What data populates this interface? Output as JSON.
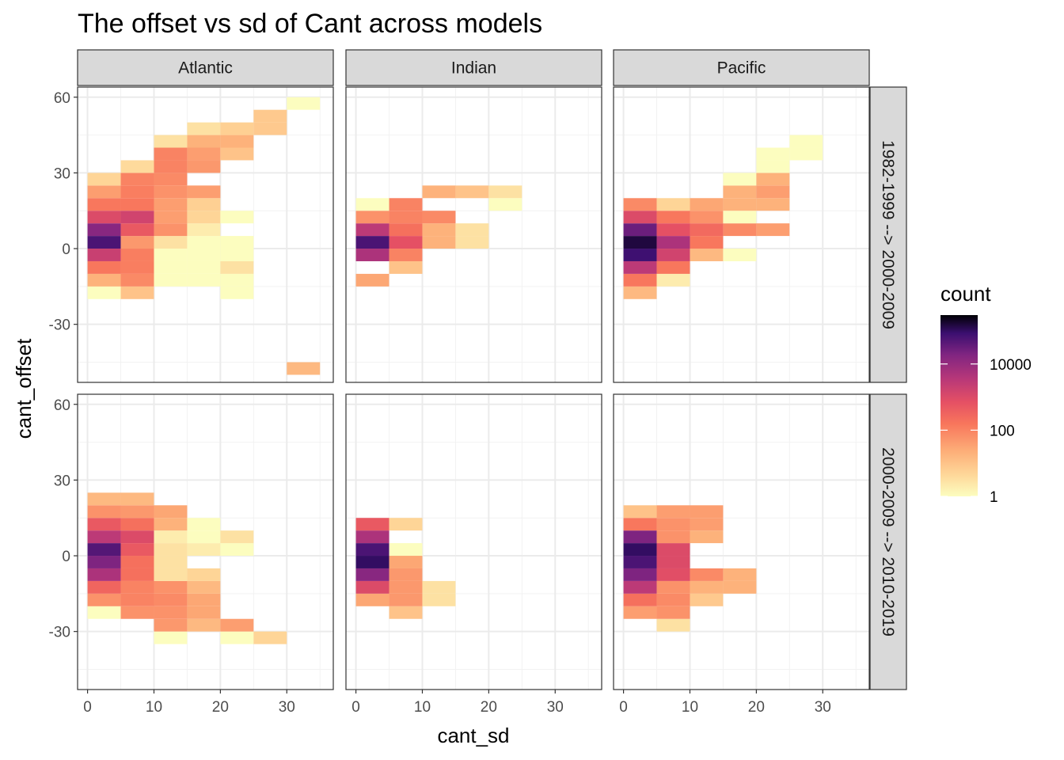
{
  "chart_data": {
    "type": "heatmap",
    "title": "The offset vs sd of Cant across models",
    "xlabel": "cant_sd",
    "ylabel": "cant_offset",
    "xlim": [
      -1.5,
      37
    ],
    "ylim": [
      -53,
      64
    ],
    "x_ticks": [
      0,
      10,
      20,
      30
    ],
    "y_ticks": [
      -30,
      0,
      30,
      60
    ],
    "bin_width_x": 5,
    "bin_height_y": 5,
    "columns": [
      "Atlantic",
      "Indian",
      "Pacific"
    ],
    "rows": [
      "1982-1999 --> 2000-2009",
      "2000-2009 --> 2010-2019"
    ],
    "legend": {
      "title": "count",
      "scale": "log10",
      "range": [
        1,
        300000
      ],
      "labels": [
        "10000",
        "100",
        "1"
      ],
      "label_values": [
        10000,
        100,
        1
      ]
    },
    "panels": [
      {
        "col": "Atlantic",
        "row": "1982-1999 --> 2000-2009",
        "cells": [
          [
            0,
            -20,
            1
          ],
          [
            0,
            -15,
            20
          ],
          [
            0,
            -10,
            150
          ],
          [
            0,
            -5,
            2000
          ],
          [
            0,
            0,
            60000
          ],
          [
            0,
            5,
            15000
          ],
          [
            0,
            10,
            1000
          ],
          [
            0,
            15,
            150
          ],
          [
            0,
            20,
            40
          ],
          [
            0,
            25,
            5
          ],
          [
            5,
            -20,
            10
          ],
          [
            5,
            -15,
            80
          ],
          [
            5,
            -10,
            120
          ],
          [
            5,
            -5,
            120
          ],
          [
            5,
            0,
            50
          ],
          [
            5,
            5,
            500
          ],
          [
            5,
            10,
            1500
          ],
          [
            5,
            15,
            150
          ],
          [
            5,
            20,
            120
          ],
          [
            5,
            25,
            100
          ],
          [
            5,
            30,
            4
          ],
          [
            10,
            -15,
            1
          ],
          [
            10,
            -10,
            1
          ],
          [
            10,
            -5,
            1
          ],
          [
            10,
            0,
            3
          ],
          [
            10,
            5,
            60
          ],
          [
            10,
            10,
            40
          ],
          [
            10,
            15,
            40
          ],
          [
            10,
            20,
            60
          ],
          [
            10,
            25,
            80
          ],
          [
            10,
            30,
            100
          ],
          [
            10,
            35,
            100
          ],
          [
            10,
            40,
            3
          ],
          [
            15,
            -15,
            1
          ],
          [
            15,
            -10,
            1
          ],
          [
            15,
            -5,
            1
          ],
          [
            15,
            0,
            1
          ],
          [
            15,
            5,
            2
          ],
          [
            15,
            10,
            5
          ],
          [
            15,
            15,
            6
          ],
          [
            15,
            20,
            40
          ],
          [
            15,
            30,
            50
          ],
          [
            15,
            35,
            40
          ],
          [
            15,
            40,
            20
          ],
          [
            15,
            45,
            3
          ],
          [
            20,
            -20,
            1
          ],
          [
            20,
            -15,
            1
          ],
          [
            20,
            -10,
            3
          ],
          [
            20,
            -5,
            1
          ],
          [
            20,
            0,
            1
          ],
          [
            20,
            10,
            1
          ],
          [
            20,
            35,
            10
          ],
          [
            20,
            40,
            20
          ],
          [
            20,
            45,
            6
          ],
          [
            25,
            45,
            8
          ],
          [
            25,
            50,
            8
          ],
          [
            30,
            55,
            1
          ],
          [
            30,
            -50,
            15
          ]
        ]
      },
      {
        "col": "Indian",
        "row": "1982-1999 --> 2000-2009",
        "cells": [
          [
            0,
            -15,
            30
          ],
          [
            0,
            -5,
            5000
          ],
          [
            0,
            0,
            60000
          ],
          [
            0,
            5,
            3000
          ],
          [
            0,
            10,
            60
          ],
          [
            0,
            15,
            1
          ],
          [
            5,
            -10,
            10
          ],
          [
            5,
            -5,
            100
          ],
          [
            5,
            0,
            700
          ],
          [
            5,
            5,
            200
          ],
          [
            5,
            10,
            100
          ],
          [
            5,
            15,
            100
          ],
          [
            10,
            0,
            20
          ],
          [
            10,
            5,
            20
          ],
          [
            10,
            10,
            80
          ],
          [
            10,
            20,
            20
          ],
          [
            15,
            0,
            3
          ],
          [
            15,
            5,
            3
          ],
          [
            15,
            20,
            10
          ],
          [
            20,
            15,
            1
          ],
          [
            20,
            20,
            3
          ]
        ]
      },
      {
        "col": "Pacific",
        "row": "1982-1999 --> 2000-2009",
        "cells": [
          [
            0,
            -20,
            15
          ],
          [
            0,
            -15,
            150
          ],
          [
            0,
            -10,
            3000
          ],
          [
            0,
            -5,
            80000
          ],
          [
            0,
            0,
            150000
          ],
          [
            0,
            5,
            30000
          ],
          [
            0,
            10,
            1000
          ],
          [
            0,
            15,
            80
          ],
          [
            5,
            -15,
            2
          ],
          [
            5,
            -10,
            150
          ],
          [
            5,
            -5,
            1500
          ],
          [
            5,
            0,
            5000
          ],
          [
            5,
            5,
            700
          ],
          [
            5,
            10,
            150
          ],
          [
            5,
            15,
            5
          ],
          [
            10,
            -5,
            15
          ],
          [
            10,
            0,
            150
          ],
          [
            10,
            5,
            250
          ],
          [
            10,
            10,
            60
          ],
          [
            10,
            15,
            30
          ],
          [
            15,
            -5,
            1
          ],
          [
            15,
            5,
            80
          ],
          [
            15,
            10,
            1
          ],
          [
            15,
            15,
            20
          ],
          [
            15,
            20,
            20
          ],
          [
            15,
            25,
            1
          ],
          [
            20,
            5,
            40
          ],
          [
            20,
            15,
            20
          ],
          [
            20,
            20,
            40
          ],
          [
            20,
            25,
            20
          ],
          [
            20,
            30,
            1
          ],
          [
            20,
            35,
            1
          ],
          [
            25,
            35,
            1
          ],
          [
            25,
            40,
            1
          ]
        ]
      },
      {
        "col": "Atlantic",
        "row": "2000-2009 --> 2010-2019",
        "cells": [
          [
            0,
            -25,
            1
          ],
          [
            0,
            -20,
            60
          ],
          [
            0,
            -15,
            300
          ],
          [
            0,
            -10,
            5000
          ],
          [
            0,
            -5,
            20000
          ],
          [
            0,
            0,
            50000
          ],
          [
            0,
            5,
            3000
          ],
          [
            0,
            10,
            500
          ],
          [
            0,
            15,
            60
          ],
          [
            0,
            20,
            15
          ],
          [
            5,
            -25,
            60
          ],
          [
            5,
            -20,
            100
          ],
          [
            5,
            -15,
            100
          ],
          [
            5,
            -10,
            200
          ],
          [
            5,
            -5,
            200
          ],
          [
            5,
            0,
            500
          ],
          [
            5,
            5,
            1000
          ],
          [
            5,
            10,
            200
          ],
          [
            5,
            15,
            50
          ],
          [
            5,
            20,
            15
          ],
          [
            10,
            -35,
            1
          ],
          [
            10,
            -30,
            50
          ],
          [
            10,
            -25,
            60
          ],
          [
            10,
            -20,
            80
          ],
          [
            10,
            -15,
            60
          ],
          [
            10,
            -10,
            3
          ],
          [
            10,
            -5,
            3
          ],
          [
            10,
            0,
            3
          ],
          [
            10,
            5,
            2
          ],
          [
            10,
            10,
            20
          ],
          [
            10,
            15,
            30
          ],
          [
            15,
            -30,
            15
          ],
          [
            15,
            -25,
            30
          ],
          [
            15,
            -20,
            30
          ],
          [
            15,
            -15,
            15
          ],
          [
            15,
            -10,
            5
          ],
          [
            15,
            0,
            2
          ],
          [
            15,
            5,
            1
          ],
          [
            15,
            10,
            1
          ],
          [
            20,
            -35,
            1
          ],
          [
            20,
            -30,
            40
          ],
          [
            20,
            0,
            1
          ],
          [
            20,
            5,
            3
          ],
          [
            25,
            -35,
            5
          ]
        ]
      },
      {
        "col": "Indian",
        "row": "2000-2009 --> 2010-2019",
        "cells": [
          [
            0,
            -20,
            30
          ],
          [
            0,
            -15,
            1000
          ],
          [
            0,
            -10,
            15000
          ],
          [
            0,
            -5,
            100000
          ],
          [
            0,
            0,
            60000
          ],
          [
            0,
            5,
            5000
          ],
          [
            0,
            10,
            500
          ],
          [
            5,
            -25,
            10
          ],
          [
            5,
            -20,
            50
          ],
          [
            5,
            -15,
            50
          ],
          [
            5,
            -10,
            50
          ],
          [
            5,
            -5,
            30
          ],
          [
            5,
            0,
            1
          ],
          [
            5,
            10,
            5
          ],
          [
            10,
            -20,
            3
          ],
          [
            10,
            -15,
            3
          ]
        ]
      },
      {
        "col": "Pacific",
        "row": "2000-2009 --> 2010-2019",
        "cells": [
          [
            0,
            -25,
            40
          ],
          [
            0,
            -20,
            200
          ],
          [
            0,
            -15,
            3000
          ],
          [
            0,
            -10,
            20000
          ],
          [
            0,
            -5,
            60000
          ],
          [
            0,
            0,
            100000
          ],
          [
            0,
            5,
            20000
          ],
          [
            0,
            10,
            150
          ],
          [
            0,
            15,
            10
          ],
          [
            5,
            -30,
            3
          ],
          [
            5,
            -25,
            60
          ],
          [
            5,
            -20,
            80
          ],
          [
            5,
            -15,
            60
          ],
          [
            5,
            -10,
            800
          ],
          [
            5,
            -5,
            1000
          ],
          [
            5,
            0,
            1000
          ],
          [
            5,
            5,
            60
          ],
          [
            5,
            10,
            60
          ],
          [
            5,
            15,
            40
          ],
          [
            10,
            -20,
            8
          ],
          [
            10,
            -15,
            20
          ],
          [
            10,
            -10,
            80
          ],
          [
            10,
            5,
            20
          ],
          [
            10,
            10,
            40
          ],
          [
            10,
            15,
            40
          ],
          [
            15,
            -15,
            20
          ],
          [
            15,
            -10,
            20
          ]
        ]
      }
    ]
  }
}
